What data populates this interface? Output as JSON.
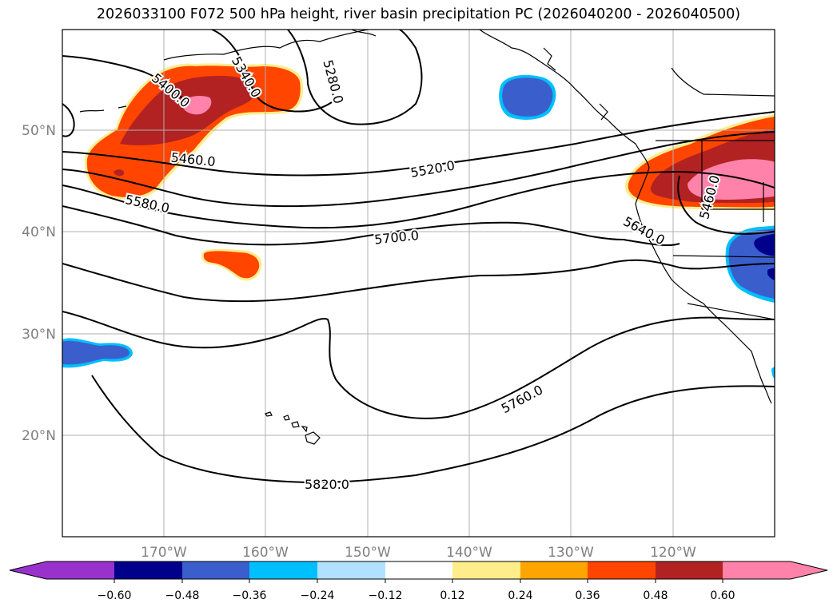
{
  "title": "2026033100 F072 500 hPa height, river basin precipitation PC (2026040200 - 2026040500)",
  "map": {
    "lat_ticks": [
      "50°N",
      "40°N",
      "30°N",
      "20°N"
    ],
    "lon_ticks": [
      "170°W",
      "160°W",
      "150°W",
      "140°W",
      "130°W",
      "120°W"
    ],
    "contour_labels": [
      "5280.0",
      "5400.0",
      "5340.0",
      "5460.0",
      "5520.0",
      "5580.0",
      "5700.0",
      "5640.0",
      "5460.0",
      "5760.0",
      "5820.0"
    ],
    "contour_color": "#000000",
    "grid_color": "#b0b0b0"
  },
  "colorbar": {
    "ticks": [
      "−0.60",
      "−0.48",
      "−0.36",
      "−0.24",
      "−0.12",
      "0.12",
      "0.24",
      "0.36",
      "0.48",
      "0.60"
    ],
    "colors": [
      "#9932cc",
      "#00008b",
      "#3a5fcd",
      "#00bfff",
      "#b0e2ff",
      "#ffffff",
      "#ffec8b",
      "#ffa500",
      "#ff4500",
      "#b22222",
      "#ff82ab"
    ]
  }
}
